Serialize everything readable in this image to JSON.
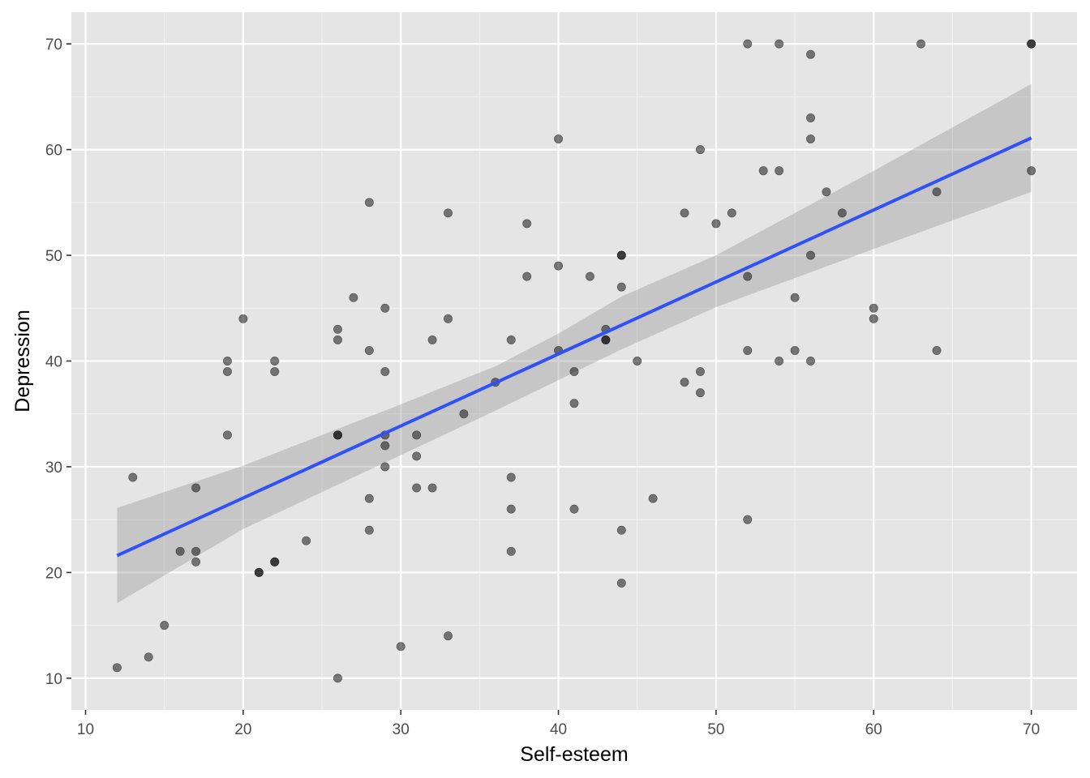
{
  "chart_data": {
    "type": "scatter",
    "title": "",
    "xlabel": "Self-esteem",
    "ylabel": "Depression",
    "xlim": [
      9.1,
      72.9
    ],
    "ylim": [
      7,
      73
    ],
    "x_ticks": [
      10,
      20,
      30,
      40,
      50,
      60,
      70
    ],
    "y_ticks": [
      10,
      20,
      30,
      40,
      50,
      60,
      70
    ],
    "grid": true,
    "legend": "none",
    "colors": {
      "panel": "#e5e5e5",
      "grid_major": "#ffffff",
      "grid_minor": "#f2f2f2",
      "points": "#000000",
      "fit_line": "#3050f8",
      "ribbon": "#999999",
      "tick_text": "#4d4d4d",
      "tick_mark": "#333333"
    },
    "points": [
      {
        "x": 12,
        "y": 11
      },
      {
        "x": 13,
        "y": 29
      },
      {
        "x": 14,
        "y": 12
      },
      {
        "x": 15,
        "y": 15
      },
      {
        "x": 16,
        "y": 22
      },
      {
        "x": 17,
        "y": 28
      },
      {
        "x": 17,
        "y": 22
      },
      {
        "x": 17,
        "y": 21
      },
      {
        "x": 19,
        "y": 40
      },
      {
        "x": 19,
        "y": 39
      },
      {
        "x": 19,
        "y": 33
      },
      {
        "x": 20,
        "y": 44
      },
      {
        "x": 21,
        "y": 20
      },
      {
        "x": 21,
        "y": 20
      },
      {
        "x": 22,
        "y": 40
      },
      {
        "x": 22,
        "y": 39
      },
      {
        "x": 22,
        "y": 21
      },
      {
        "x": 22,
        "y": 21
      },
      {
        "x": 24,
        "y": 23
      },
      {
        "x": 26,
        "y": 43
      },
      {
        "x": 26,
        "y": 42
      },
      {
        "x": 26,
        "y": 33
      },
      {
        "x": 26,
        "y": 33
      },
      {
        "x": 26,
        "y": 10
      },
      {
        "x": 27,
        "y": 46
      },
      {
        "x": 28,
        "y": 55
      },
      {
        "x": 28,
        "y": 41
      },
      {
        "x": 28,
        "y": 27
      },
      {
        "x": 28,
        "y": 24
      },
      {
        "x": 29,
        "y": 45
      },
      {
        "x": 29,
        "y": 39
      },
      {
        "x": 29,
        "y": 33
      },
      {
        "x": 29,
        "y": 32
      },
      {
        "x": 29,
        "y": 30
      },
      {
        "x": 30,
        "y": 13
      },
      {
        "x": 31,
        "y": 33
      },
      {
        "x": 31,
        "y": 31
      },
      {
        "x": 31,
        "y": 28
      },
      {
        "x": 32,
        "y": 42
      },
      {
        "x": 32,
        "y": 28
      },
      {
        "x": 33,
        "y": 54
      },
      {
        "x": 33,
        "y": 44
      },
      {
        "x": 33,
        "y": 14
      },
      {
        "x": 34,
        "y": 35
      },
      {
        "x": 36,
        "y": 38
      },
      {
        "x": 37,
        "y": 42
      },
      {
        "x": 37,
        "y": 29
      },
      {
        "x": 37,
        "y": 26
      },
      {
        "x": 37,
        "y": 22
      },
      {
        "x": 38,
        "y": 53
      },
      {
        "x": 38,
        "y": 48
      },
      {
        "x": 40,
        "y": 61
      },
      {
        "x": 40,
        "y": 49
      },
      {
        "x": 40,
        "y": 41
      },
      {
        "x": 41,
        "y": 39
      },
      {
        "x": 41,
        "y": 36
      },
      {
        "x": 41,
        "y": 26
      },
      {
        "x": 42,
        "y": 48
      },
      {
        "x": 43,
        "y": 43
      },
      {
        "x": 43,
        "y": 42
      },
      {
        "x": 43,
        "y": 42
      },
      {
        "x": 44,
        "y": 50
      },
      {
        "x": 44,
        "y": 50
      },
      {
        "x": 44,
        "y": 47
      },
      {
        "x": 44,
        "y": 24
      },
      {
        "x": 44,
        "y": 19
      },
      {
        "x": 45,
        "y": 40
      },
      {
        "x": 46,
        "y": 27
      },
      {
        "x": 48,
        "y": 54
      },
      {
        "x": 48,
        "y": 38
      },
      {
        "x": 49,
        "y": 60
      },
      {
        "x": 49,
        "y": 39
      },
      {
        "x": 49,
        "y": 37
      },
      {
        "x": 50,
        "y": 53
      },
      {
        "x": 51,
        "y": 54
      },
      {
        "x": 52,
        "y": 70
      },
      {
        "x": 52,
        "y": 48
      },
      {
        "x": 52,
        "y": 41
      },
      {
        "x": 52,
        "y": 25
      },
      {
        "x": 53,
        "y": 58
      },
      {
        "x": 54,
        "y": 70
      },
      {
        "x": 54,
        "y": 58
      },
      {
        "x": 54,
        "y": 40
      },
      {
        "x": 55,
        "y": 46
      },
      {
        "x": 55,
        "y": 41
      },
      {
        "x": 56,
        "y": 69
      },
      {
        "x": 56,
        "y": 63
      },
      {
        "x": 56,
        "y": 61
      },
      {
        "x": 56,
        "y": 50
      },
      {
        "x": 56,
        "y": 40
      },
      {
        "x": 57,
        "y": 56
      },
      {
        "x": 58,
        "y": 54
      },
      {
        "x": 60,
        "y": 45
      },
      {
        "x": 60,
        "y": 44
      },
      {
        "x": 63,
        "y": 70
      },
      {
        "x": 64,
        "y": 56
      },
      {
        "x": 64,
        "y": 41
      },
      {
        "x": 70,
        "y": 70
      },
      {
        "x": 70,
        "y": 70
      },
      {
        "x": 70,
        "y": 58
      }
    ],
    "fit_line": {
      "x": [
        12,
        70
      ],
      "y": [
        21.6,
        61.1
      ]
    },
    "confidence_band": {
      "x": [
        12,
        20,
        30,
        36,
        40,
        44,
        50,
        60,
        70
      ],
      "lower": [
        17.1,
        24.1,
        31.1,
        35.3,
        38.2,
        41.1,
        45.1,
        50.6,
        56.0
      ],
      "upper": [
        26.1,
        30.1,
        35.9,
        39.5,
        42.6,
        46.1,
        50.0,
        58.0,
        66.2
      ]
    }
  }
}
